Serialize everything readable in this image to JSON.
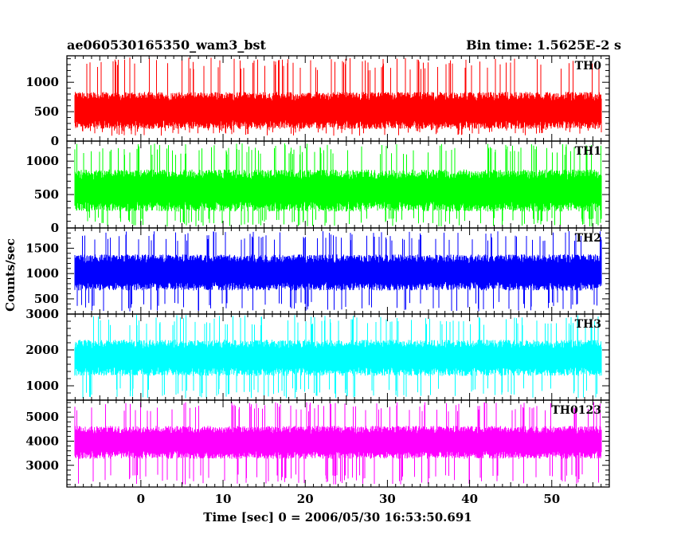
{
  "header": {
    "left_title": "ae060530165350_wam3_bst",
    "right_title": "Bin time: 1.5625E-2 s"
  },
  "chart_data": {
    "type": "line",
    "x_axis": {
      "label": "Time [sec] 0 = 2006/05/30 16:53:50.691",
      "range": [
        -9,
        57
      ],
      "ticks": [
        0,
        10,
        20,
        30,
        40,
        50
      ],
      "data_range": [
        -8,
        56
      ]
    },
    "y_label": "Counts/sec",
    "panels": [
      {
        "name": "TH0",
        "color": "#ff0000",
        "yrange": [
          0,
          1450
        ],
        "ticks": [
          0,
          500,
          1000
        ],
        "base": 520,
        "spread": 300,
        "low_dip": 90,
        "high_peak": 1430
      },
      {
        "name": "TH1",
        "color": "#00ff00",
        "yrange": [
          0,
          1300
        ],
        "ticks": [
          0,
          500,
          1000
        ],
        "base": 560,
        "spread": 300,
        "low_dip": 20,
        "high_peak": 1270
      },
      {
        "name": "TH2",
        "color": "#0000ff",
        "yrange": [
          200,
          1900
        ],
        "ticks": [
          500,
          1000,
          1500
        ],
        "base": 1020,
        "spread": 340,
        "low_dip": 250,
        "high_peak": 1850
      },
      {
        "name": "TH3",
        "color": "#00ffff",
        "yrange": [
          600,
          3000
        ],
        "ticks": [
          1000,
          2000,
          3000
        ],
        "base": 1780,
        "spread": 480,
        "low_dip": 650,
        "high_peak": 2980
      },
      {
        "name": "TH0123",
        "color": "#ff00ff",
        "yrange": [
          2100,
          5700
        ],
        "ticks": [
          3000,
          4000,
          5000
        ],
        "base": 3950,
        "spread": 650,
        "low_dip": 2200,
        "high_peak": 5650
      }
    ]
  }
}
